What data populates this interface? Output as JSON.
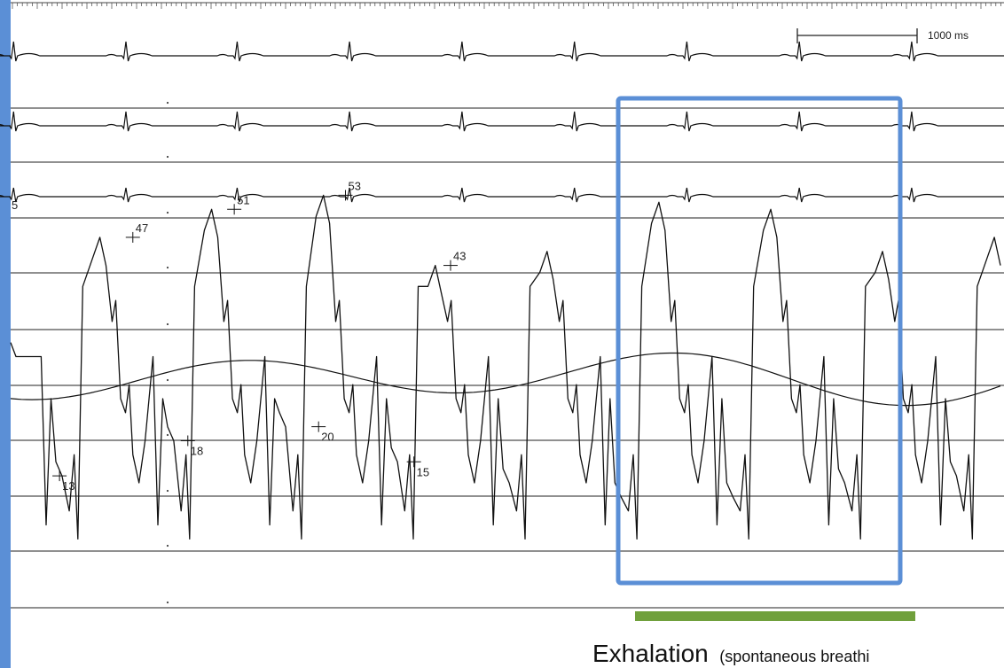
{
  "chart_data": {
    "type": "line",
    "title": "",
    "xlabel": "",
    "ylabel": "",
    "grid": true,
    "xlim_ms": [
      0,
      8100
    ],
    "ylim_mmHg": [
      0,
      60
    ],
    "scale_bar": {
      "label": "1000 ms",
      "ms": 1000
    },
    "ecg_leads": 3,
    "heart_rate_period_ms": 915,
    "beat_times_ms": [
      20,
      940,
      1850,
      2770,
      3690,
      4610,
      5530,
      6450,
      7370
    ],
    "pressure": {
      "name": "",
      "systolic_annotations": [
        {
          "t": 1000,
          "value": "47",
          "ref": 47
        },
        {
          "t": 1830,
          "value": "51",
          "ref": 51
        },
        {
          "t": 2740,
          "value": "53",
          "ref": 53
        },
        {
          "t": 3600,
          "value": "43",
          "ref": 43
        }
      ],
      "diastolic_annotations": [
        {
          "t": 400,
          "value": "13",
          "ref": 13
        },
        {
          "t": 1450,
          "value": "18",
          "ref": 18
        },
        {
          "t": 2520,
          "value": "20",
          "ref": 20
        },
        {
          "t": 3300,
          "value": "15",
          "ref": 15
        }
      ],
      "edge_label": "5",
      "unlabeled_peaks_mmHg": [
        45,
        52,
        51,
        45
      ]
    },
    "respiration_trace": {
      "phase": "exhalation",
      "min_ms": 5350,
      "max_ms": 7550
    },
    "highlight": {
      "label": "Exhalation",
      "note": "(spontaneous breathi",
      "from_ms": 5100,
      "to_ms": 7300
    }
  },
  "colors": {
    "trace": "#111111",
    "grid": "#222222",
    "highlight_box": "#5b8fd6",
    "highlight_bar": "#70a03c",
    "left_strip": "#5b8fd6"
  }
}
